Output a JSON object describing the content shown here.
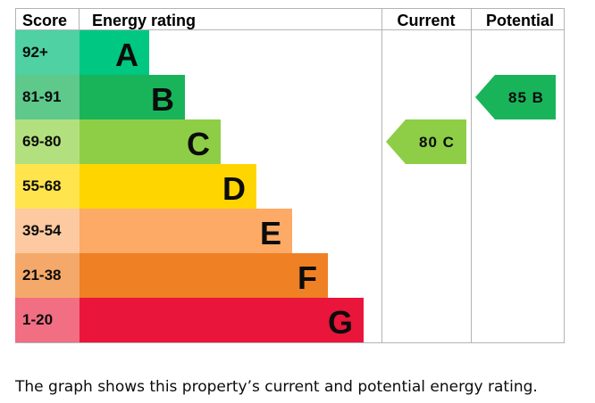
{
  "headers": {
    "score": "Score",
    "energy_rating": "Energy rating",
    "current": "Current",
    "potential": "Potential"
  },
  "caption": "The graph shows this property’s current and potential energy rating.",
  "chart_data": {
    "type": "bar",
    "categories": [
      "A",
      "B",
      "C",
      "D",
      "E",
      "F",
      "G"
    ],
    "score_ranges": [
      "92+",
      "81-91",
      "69-80",
      "55-68",
      "39-54",
      "21-38",
      "1-20"
    ],
    "band_colors": [
      "#00c781",
      "#19b459",
      "#8dce46",
      "#ffd500",
      "#fcaa65",
      "#ef8023",
      "#e9153b"
    ],
    "score_cell_colors": [
      "#4fd1a3",
      "#5ec98a",
      "#b3e07e",
      "#ffe44d",
      "#fdc9a0",
      "#f4a96a",
      "#f16e83"
    ],
    "current": {
      "value": 80,
      "rating": "C",
      "label": "80 C",
      "color": "#8dce46"
    },
    "potential": {
      "value": 85,
      "rating": "B",
      "label": "85 B",
      "color": "#19b459"
    }
  }
}
